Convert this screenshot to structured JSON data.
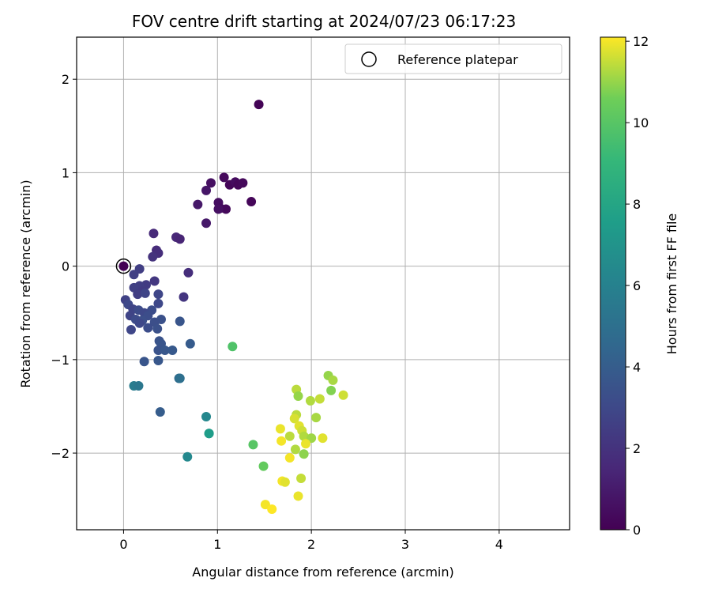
{
  "chart_data": {
    "type": "scatter",
    "title": "FOV centre drift starting at 2024/07/23 06:17:23",
    "xlabel": "Angular distance from reference (arcmin)",
    "ylabel": "Rotation from reference (arcmin)",
    "xlim": [
      -0.5,
      4.75
    ],
    "ylim": [
      -2.82,
      2.45
    ],
    "xticks": [
      0,
      1,
      2,
      3,
      4
    ],
    "xtick_labels": [
      "0",
      "1",
      "2",
      "3",
      "4"
    ],
    "yticks": [
      -2,
      -1,
      0,
      1,
      2
    ],
    "ytick_labels": [
      "−2",
      "−1",
      "0",
      "1",
      "2"
    ],
    "grid": true,
    "legend": {
      "position": "top-right",
      "label": "Reference platepar"
    },
    "reference_point": {
      "x": 0,
      "y": 0
    },
    "colorbar": {
      "label": "Hours from first FF file",
      "range": [
        0,
        12.1
      ],
      "ticks": [
        0,
        2,
        4,
        6,
        8,
        10,
        12
      ],
      "tick_labels": [
        "0",
        "2",
        "4",
        "6",
        "8",
        "10",
        "12"
      ],
      "colormap": "viridis"
    },
    "points": [
      {
        "x": 1.44,
        "y": 1.73,
        "h": 0.1
      },
      {
        "x": 1.07,
        "y": 0.95,
        "h": 0.3
      },
      {
        "x": 1.13,
        "y": 0.87,
        "h": 0.2
      },
      {
        "x": 1.19,
        "y": 0.9,
        "h": 0.4
      },
      {
        "x": 1.22,
        "y": 0.87,
        "h": 0.2
      },
      {
        "x": 1.27,
        "y": 0.89,
        "h": 0.3
      },
      {
        "x": 0.93,
        "y": 0.89,
        "h": 0.6
      },
      {
        "x": 0.88,
        "y": 0.81,
        "h": 0.8
      },
      {
        "x": 1.01,
        "y": 0.68,
        "h": 0.5
      },
      {
        "x": 1.36,
        "y": 0.69,
        "h": 0.2
      },
      {
        "x": 0.79,
        "y": 0.66,
        "h": 0.9
      },
      {
        "x": 1.03,
        "y": 0.62,
        "h": 0.4
      },
      {
        "x": 1.09,
        "y": 0.61,
        "h": 0.3
      },
      {
        "x": 1.01,
        "y": 0.61,
        "h": 0.6
      },
      {
        "x": 0.88,
        "y": 0.46,
        "h": 0.9
      },
      {
        "x": 0.32,
        "y": 0.35,
        "h": 1.6
      },
      {
        "x": 0.56,
        "y": 0.31,
        "h": 1.5
      },
      {
        "x": 0.6,
        "y": 0.29,
        "h": 1.4
      },
      {
        "x": 0.35,
        "y": 0.17,
        "h": 1.7
      },
      {
        "x": 0.37,
        "y": 0.14,
        "h": 1.8
      },
      {
        "x": 0.31,
        "y": 0.1,
        "h": 2.0
      },
      {
        "x": 0.0,
        "y": 0.0,
        "h": 0.0
      },
      {
        "x": 0.17,
        "y": -0.03,
        "h": 2.5
      },
      {
        "x": 0.69,
        "y": -0.07,
        "h": 1.8
      },
      {
        "x": 0.11,
        "y": -0.09,
        "h": 2.6
      },
      {
        "x": 0.33,
        "y": -0.16,
        "h": 2.2
      },
      {
        "x": 0.24,
        "y": -0.2,
        "h": 2.4
      },
      {
        "x": 0.17,
        "y": -0.21,
        "h": 2.5
      },
      {
        "x": 0.11,
        "y": -0.23,
        "h": 2.6
      },
      {
        "x": 0.2,
        "y": -0.27,
        "h": 2.4
      },
      {
        "x": 0.15,
        "y": -0.3,
        "h": 2.5
      },
      {
        "x": 0.23,
        "y": -0.29,
        "h": 2.8
      },
      {
        "x": 0.37,
        "y": -0.3,
        "h": 2.9
      },
      {
        "x": 0.64,
        "y": -0.33,
        "h": 2.1
      },
      {
        "x": 0.02,
        "y": -0.36,
        "h": 2.7
      },
      {
        "x": 0.05,
        "y": -0.41,
        "h": 3.0
      },
      {
        "x": 0.37,
        "y": -0.4,
        "h": 3.0
      },
      {
        "x": 0.1,
        "y": -0.46,
        "h": 2.8
      },
      {
        "x": 0.16,
        "y": -0.47,
        "h": 3.1
      },
      {
        "x": 0.3,
        "y": -0.47,
        "h": 3.2
      },
      {
        "x": 0.22,
        "y": -0.5,
        "h": 3.0
      },
      {
        "x": 0.07,
        "y": -0.53,
        "h": 2.8
      },
      {
        "x": 0.26,
        "y": -0.53,
        "h": 3.2
      },
      {
        "x": 0.13,
        "y": -0.57,
        "h": 3.1
      },
      {
        "x": 0.2,
        "y": -0.58,
        "h": 3.3
      },
      {
        "x": 0.4,
        "y": -0.57,
        "h": 3.4
      },
      {
        "x": 0.33,
        "y": -0.6,
        "h": 3.3
      },
      {
        "x": 0.17,
        "y": -0.61,
        "h": 3.0
      },
      {
        "x": 0.6,
        "y": -0.59,
        "h": 3.6
      },
      {
        "x": 0.26,
        "y": -0.66,
        "h": 3.2
      },
      {
        "x": 0.36,
        "y": -0.67,
        "h": 3.4
      },
      {
        "x": 0.08,
        "y": -0.68,
        "h": 2.9
      },
      {
        "x": 0.38,
        "y": -0.8,
        "h": 3.5
      },
      {
        "x": 0.4,
        "y": -0.83,
        "h": 3.6
      },
      {
        "x": 0.71,
        "y": -0.83,
        "h": 3.9
      },
      {
        "x": 0.37,
        "y": -0.9,
        "h": 3.5
      },
      {
        "x": 0.44,
        "y": -0.9,
        "h": 3.7
      },
      {
        "x": 0.52,
        "y": -0.9,
        "h": 3.8
      },
      {
        "x": 1.16,
        "y": -0.86,
        "h": 9.8
      },
      {
        "x": 0.37,
        "y": -1.01,
        "h": 3.7
      },
      {
        "x": 0.22,
        "y": -1.02,
        "h": 3.6
      },
      {
        "x": 0.59,
        "y": -1.2,
        "h": 4.7
      },
      {
        "x": 0.6,
        "y": -1.2,
        "h": 5.0
      },
      {
        "x": 0.11,
        "y": -1.28,
        "h": 5.7
      },
      {
        "x": 0.16,
        "y": -1.28,
        "h": 5.4
      },
      {
        "x": 0.39,
        "y": -1.56,
        "h": 4.0
      },
      {
        "x": 0.88,
        "y": -1.61,
        "h": 6.3
      },
      {
        "x": 0.91,
        "y": -1.79,
        "h": 6.7
      },
      {
        "x": 0.91,
        "y": -1.79,
        "h": 7.5
      },
      {
        "x": 0.68,
        "y": -2.04,
        "h": 6.4
      },
      {
        "x": 1.38,
        "y": -1.91,
        "h": 10.0
      },
      {
        "x": 1.49,
        "y": -2.14,
        "h": 10.3
      },
      {
        "x": 1.84,
        "y": -1.32,
        "h": 11.4
      },
      {
        "x": 1.86,
        "y": -1.39,
        "h": 11.0
      },
      {
        "x": 2.18,
        "y": -1.17,
        "h": 11.0
      },
      {
        "x": 2.23,
        "y": -1.22,
        "h": 11.2
      },
      {
        "x": 2.21,
        "y": -1.33,
        "h": 10.8
      },
      {
        "x": 2.34,
        "y": -1.38,
        "h": 11.6
      },
      {
        "x": 1.99,
        "y": -1.44,
        "h": 11.3
      },
      {
        "x": 2.09,
        "y": -1.42,
        "h": 11.5
      },
      {
        "x": 1.84,
        "y": -1.59,
        "h": 11.4
      },
      {
        "x": 1.82,
        "y": -1.63,
        "h": 11.7
      },
      {
        "x": 2.05,
        "y": -1.62,
        "h": 11.2
      },
      {
        "x": 1.67,
        "y": -1.74,
        "h": 11.9
      },
      {
        "x": 1.87,
        "y": -1.71,
        "h": 11.8
      },
      {
        "x": 1.9,
        "y": -1.76,
        "h": 11.6
      },
      {
        "x": 1.77,
        "y": -1.82,
        "h": 11.4
      },
      {
        "x": 1.92,
        "y": -1.82,
        "h": 11.3
      },
      {
        "x": 2.0,
        "y": -1.84,
        "h": 11.1
      },
      {
        "x": 2.12,
        "y": -1.84,
        "h": 11.8
      },
      {
        "x": 1.68,
        "y": -1.87,
        "h": 12.0
      },
      {
        "x": 1.94,
        "y": -1.9,
        "h": 11.9
      },
      {
        "x": 1.83,
        "y": -1.96,
        "h": 11.3
      },
      {
        "x": 1.92,
        "y": -2.01,
        "h": 10.9
      },
      {
        "x": 1.77,
        "y": -2.05,
        "h": 12.0
      },
      {
        "x": 1.89,
        "y": -2.27,
        "h": 11.5
      },
      {
        "x": 1.69,
        "y": -2.3,
        "h": 12.0
      },
      {
        "x": 1.72,
        "y": -2.31,
        "h": 11.8
      },
      {
        "x": 1.86,
        "y": -2.46,
        "h": 11.9
      },
      {
        "x": 1.51,
        "y": -2.55,
        "h": 12.0
      },
      {
        "x": 1.58,
        "y": -2.6,
        "h": 12.1
      }
    ]
  }
}
